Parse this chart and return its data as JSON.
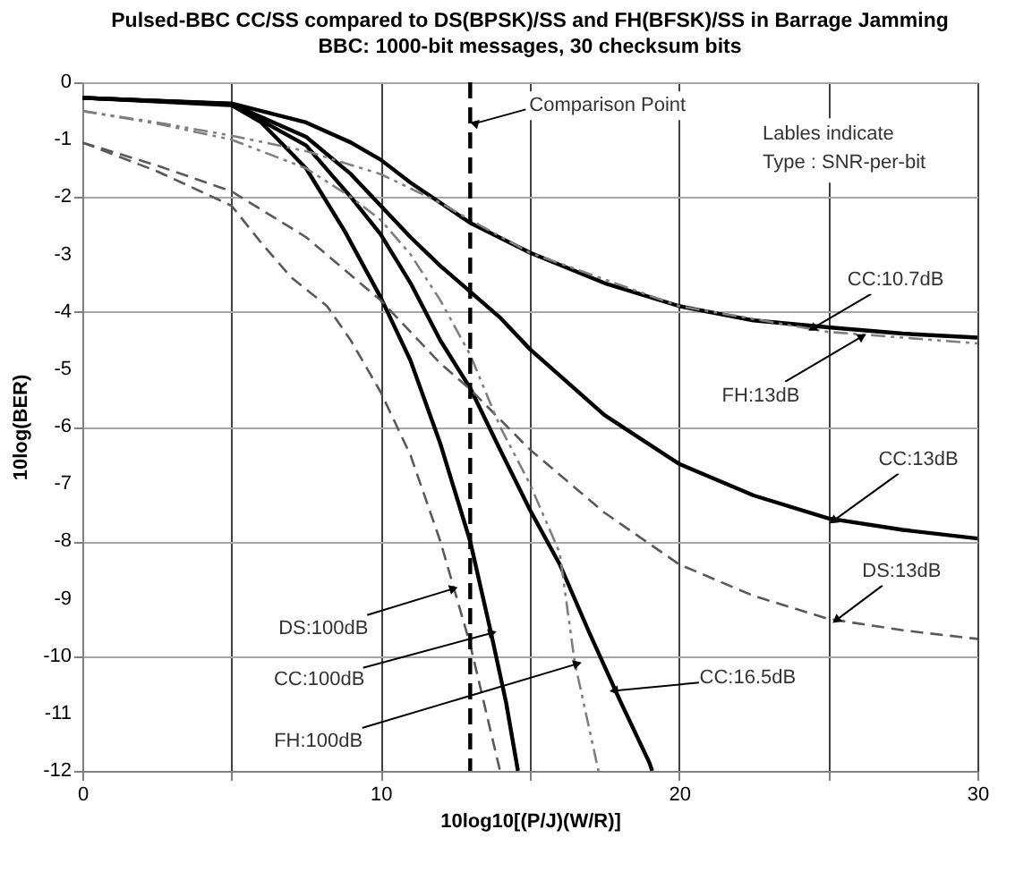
{
  "chart_data": {
    "type": "line",
    "title": "Pulsed-BBC CC/SS compared to DS(BPSK)/SS and FH(BFSK)/SS in Barrage Jamming",
    "subtitle": "BBC: 1000-bit messages, 30 checksum bits",
    "xlabel": "10log10[(P/J)(W/R)]",
    "ylabel": "10log(BER)",
    "xlim": [
      0,
      30
    ],
    "ylim": [
      -12,
      0
    ],
    "xticks": [
      0,
      {
        "value": 5,
        "label": null
      },
      10,
      {
        "value": 15,
        "label": null
      },
      20,
      {
        "value": 25,
        "label": null
      },
      30
    ],
    "yticks": [
      -12,
      -11,
      -10,
      -9,
      -8,
      -7,
      -6,
      -5,
      -4,
      -3,
      -2,
      -1,
      0
    ],
    "grid": true,
    "series": [
      {
        "color": "#000000",
        "line_style": "solid",
        "x": [
          0,
          5,
          7.5,
          9,
          10,
          11,
          12,
          13,
          15,
          17.5,
          20,
          22.5,
          25,
          27.5,
          30
        ],
        "values": [
          -0.27,
          -0.37,
          -0.7,
          -1.05,
          -1.35,
          -1.75,
          -2.1,
          -2.45,
          -2.97,
          -3.5,
          -3.9,
          -4.15,
          -4.27,
          -4.38,
          -4.45
        ]
      },
      {
        "color": "#000000",
        "line_style": "solid",
        "x": [
          0,
          5,
          7.5,
          9,
          10,
          11,
          12,
          13,
          14,
          15,
          17.5,
          20,
          22.5,
          25,
          27.5,
          30
        ],
        "values": [
          -0.27,
          -0.38,
          -0.95,
          -1.6,
          -2.15,
          -2.7,
          -3.2,
          -3.65,
          -4.1,
          -4.65,
          -5.8,
          -6.65,
          -7.2,
          -7.6,
          -7.8,
          -7.95
        ]
      },
      {
        "color": "#000000",
        "line_style": "solid",
        "x": [
          0,
          5,
          7.5,
          9,
          10,
          11,
          12,
          13,
          14,
          15,
          16,
          17,
          18,
          19,
          19.1
        ],
        "values": [
          -0.27,
          -0.38,
          -1.1,
          -2.0,
          -2.65,
          -3.5,
          -4.5,
          -5.33,
          -6.4,
          -7.45,
          -8.4,
          -9.6,
          -10.75,
          -11.85,
          -12
        ]
      },
      {
        "color": "#000000",
        "line_style": "solid",
        "x": [
          0,
          5,
          6,
          7.5,
          8.8,
          10,
          11,
          12,
          13,
          13.7,
          14.2,
          14.6
        ],
        "values": [
          -0.27,
          -0.4,
          -0.7,
          -1.5,
          -2.6,
          -3.75,
          -4.85,
          -6.3,
          -8.0,
          -9.6,
          -10.8,
          -12
        ]
      },
      {
        "color": "#595959",
        "line_style": "dashed",
        "x": [
          0,
          2.5,
          5,
          7.5,
          10,
          12,
          13,
          15,
          17.5,
          20,
          22.5,
          25,
          27.5,
          30
        ],
        "values": [
          -1.05,
          -1.45,
          -1.9,
          -2.7,
          -3.8,
          -4.9,
          -5.35,
          -6.4,
          -7.5,
          -8.4,
          -8.95,
          -9.35,
          -9.55,
          -9.7
        ]
      },
      {
        "color": "#595959",
        "line_style": "dashed",
        "x": [
          0,
          2.5,
          5,
          6,
          7,
          8.2,
          9,
          10,
          11,
          12,
          12.5,
          13,
          13.5,
          14
        ],
        "values": [
          -1.05,
          -1.55,
          -2.15,
          -2.8,
          -3.4,
          -3.9,
          -4.5,
          -5.4,
          -6.5,
          -8.0,
          -8.9,
          -9.8,
          -10.9,
          -12
        ]
      },
      {
        "color": "#7f7f7f",
        "line_style": "dashdot",
        "x": [
          0,
          2.5,
          5,
          7.5,
          10,
          12,
          13,
          15,
          20,
          25,
          30
        ],
        "values": [
          -0.5,
          -0.7,
          -0.93,
          -1.2,
          -1.6,
          -2.1,
          -2.4,
          -2.97,
          -3.9,
          -4.35,
          -4.55
        ]
      },
      {
        "color": "#7f7f7f",
        "line_style": "dashdot",
        "x": [
          0,
          2.5,
          5,
          7.5,
          9,
          10,
          11,
          12,
          13,
          14,
          15,
          16,
          16.5,
          17.3
        ],
        "values": [
          -0.5,
          -0.72,
          -1.0,
          -1.5,
          -2.0,
          -2.4,
          -3.0,
          -3.8,
          -4.75,
          -6.0,
          -7.0,
          -8.2,
          -10.1,
          -12
        ]
      }
    ],
    "ref_lines": [
      {
        "axis": "x",
        "value": 13,
        "color": "#000000",
        "line_style": "dashed",
        "label": "Comparison Point"
      }
    ],
    "annotations": [
      {
        "text": "CC:10.7dB",
        "x": 24.5,
        "y": -4.28
      },
      {
        "text": "FH:13dB",
        "x": 26.1,
        "y": -4.44
      },
      {
        "text": "CC:13dB",
        "x": 25.2,
        "y": -7.63
      },
      {
        "text": "DS:13dB",
        "x": 25.3,
        "y": -9.36
      },
      {
        "text": "DS:100dB",
        "x": 12.4,
        "y": -8.83
      },
      {
        "text": "CC:100dB",
        "x": 13.7,
        "y": -9.6
      },
      {
        "text": "FH:100dB",
        "x": 16.55,
        "y": -10.14
      },
      {
        "text": "CC:16.5dB",
        "x": 17.86,
        "y": -10.6
      },
      "Lables indicate\nType : SNR-per-bit"
    ]
  }
}
